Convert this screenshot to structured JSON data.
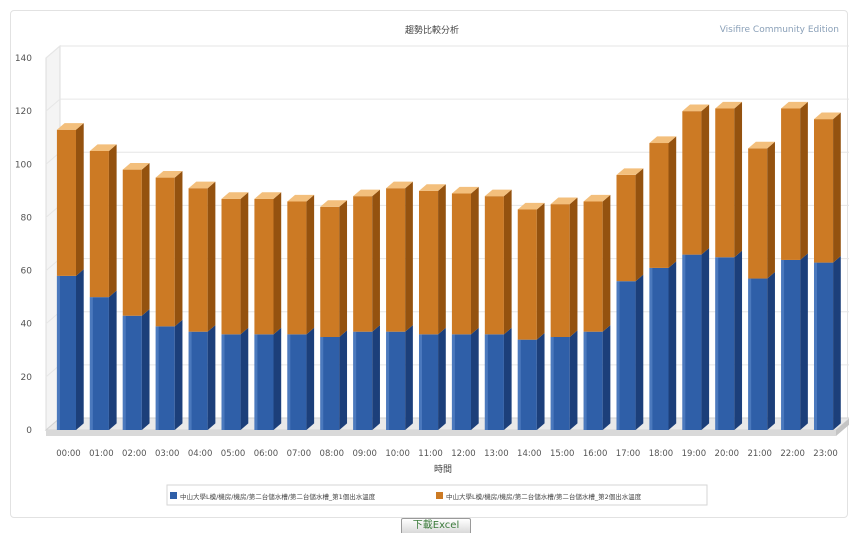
{
  "watermark": "Visifire Community Edition",
  "download_label": "下載Excel",
  "colors": {
    "series1_front": "#2f5fa8",
    "series1_side": "#1c3f7a",
    "series1_top": "#6f98d8",
    "series2_front": "#cc7a24",
    "series2_side": "#94520f",
    "series2_top": "#f3bf7c",
    "grid": "#e6e6e6",
    "axis_text": "#555555"
  },
  "chart_data": {
    "type": "bar",
    "stacked": true,
    "three_d": true,
    "title": "趨勢比較分析",
    "xlabel": "時間",
    "ylabel": "",
    "ylim": [
      0,
      140
    ],
    "yticks": [
      0,
      20,
      40,
      60,
      80,
      100,
      120,
      140
    ],
    "grid": true,
    "legend_position": "bottom",
    "categories": [
      "00:00",
      "01:00",
      "02:00",
      "03:00",
      "04:00",
      "05:00",
      "06:00",
      "07:00",
      "08:00",
      "09:00",
      "10:00",
      "11:00",
      "12:00",
      "13:00",
      "14:00",
      "15:00",
      "16:00",
      "17:00",
      "18:00",
      "19:00",
      "20:00",
      "21:00",
      "22:00",
      "23:00"
    ],
    "series": [
      {
        "name": "中山大學L模/機房/機房/第二台儲水槽/第二台儲水槽_第1個出水溫度",
        "values": [
          58,
          50,
          43,
          39,
          37,
          36,
          36,
          36,
          35,
          37,
          37,
          36,
          36,
          36,
          34,
          35,
          37,
          56,
          61,
          66,
          65,
          57,
          64,
          63
        ]
      },
      {
        "name": "中山大學L模/機房/機房/第二台儲水槽/第二台儲水槽_第2個出水溫度",
        "values": [
          55,
          55,
          55,
          56,
          54,
          51,
          51,
          50,
          49,
          51,
          54,
          54,
          53,
          52,
          49,
          50,
          49,
          40,
          47,
          54,
          56,
          49,
          57,
          54
        ]
      }
    ]
  }
}
